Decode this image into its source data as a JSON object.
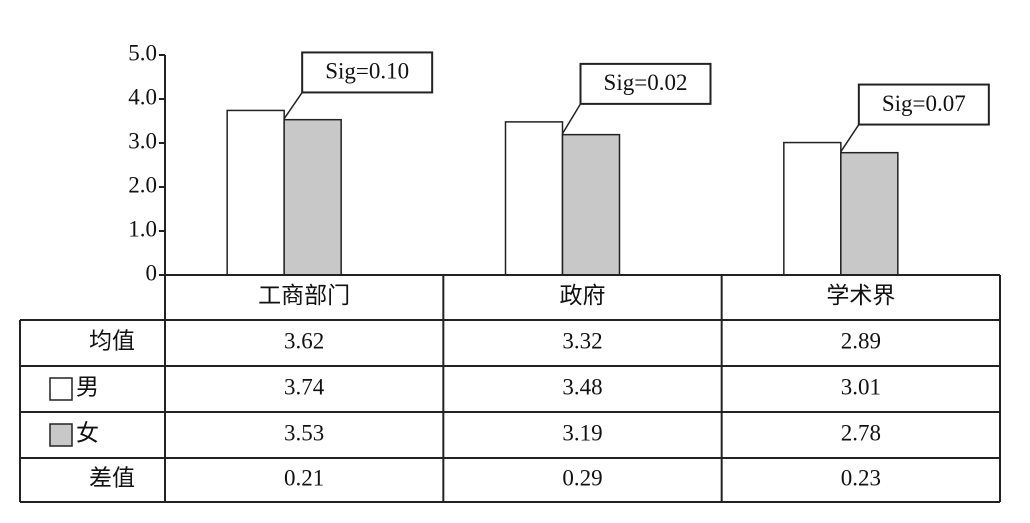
{
  "chart_data": {
    "type": "bar",
    "categories": [
      "工商部门",
      "政府",
      "学术界"
    ],
    "series": [
      {
        "name": "男",
        "color": "#ffffff",
        "values": [
          3.74,
          3.48,
          3.01
        ]
      },
      {
        "name": "女",
        "color": "#c8c8c8",
        "values": [
          3.53,
          3.19,
          2.78
        ]
      }
    ],
    "annotations": [
      "Sig=0.10",
      "Sig=0.02",
      "Sig=0.07"
    ],
    "ylim": [
      0,
      5
    ],
    "yticks": [
      0,
      {
        "value": 1,
        "label": "1.0"
      },
      {
        "value": 2,
        "label": "2.0"
      },
      {
        "value": 3,
        "label": "3.0"
      },
      {
        "value": 4,
        "label": "4.0"
      },
      {
        "value": 5,
        "label": "5.0"
      }
    ],
    "table": {
      "mean": {
        "label": "均值",
        "values": [
          3.62,
          3.32,
          2.89
        ]
      },
      "diff": {
        "label": "差值",
        "values": [
          0.21,
          0.29,
          0.23
        ]
      }
    }
  }
}
